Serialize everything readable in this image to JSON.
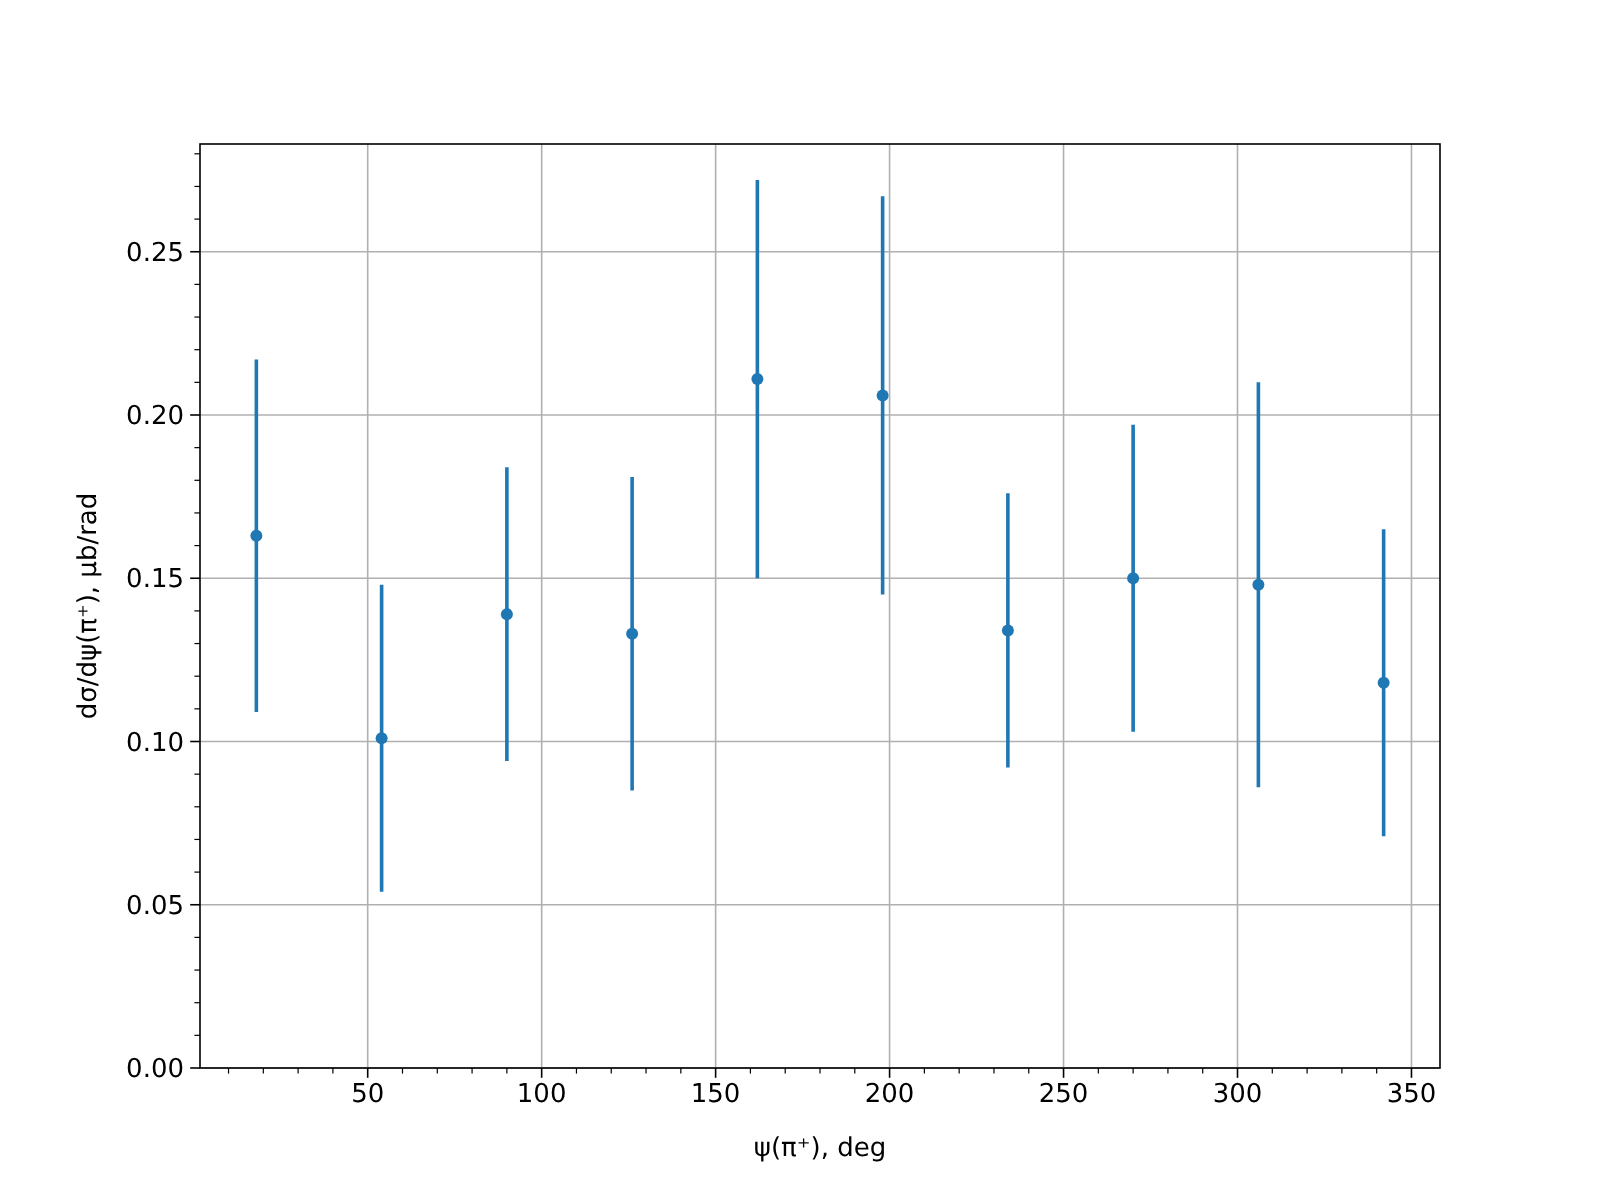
{
  "chart_data": {
    "type": "scatter",
    "xlabel": "ψ(π⁺), deg",
    "ylabel": "dσ/dψ(π⁺), μb/rad",
    "x": [
      18,
      54,
      90,
      126,
      162,
      198,
      234,
      270,
      306,
      342
    ],
    "series": [
      {
        "color": "#1f77b4",
        "values": [
          0.163,
          0.101,
          0.139,
          0.133,
          0.211,
          0.206,
          0.134,
          0.15,
          0.148,
          0.118
        ],
        "errors": [
          0.054,
          0.047,
          0.045,
          0.048,
          0.061,
          0.061,
          0.042,
          0.047,
          0.062,
          0.047
        ]
      }
    ],
    "marker": "circle",
    "grid": true,
    "xlim": [
      1.8,
      358.2
    ],
    "ylim": [
      0,
      0.283
    ],
    "xticks": [
      {
        "value": 10,
        "label": null
      },
      {
        "value": 20,
        "label": null
      },
      {
        "value": 30,
        "label": null
      },
      {
        "value": 40,
        "label": null
      },
      50,
      {
        "value": 60,
        "label": null
      },
      {
        "value": 70,
        "label": null
      },
      {
        "value": 80,
        "label": null
      },
      {
        "value": 90,
        "label": null
      },
      100,
      {
        "value": 110,
        "label": null
      },
      {
        "value": 120,
        "label": null
      },
      {
        "value": 130,
        "label": null
      },
      {
        "value": 140,
        "label": null
      },
      150,
      {
        "value": 160,
        "label": null
      },
      {
        "value": 170,
        "label": null
      },
      {
        "value": 180,
        "label": null
      },
      {
        "value": 190,
        "label": null
      },
      200,
      {
        "value": 210,
        "label": null
      },
      {
        "value": 220,
        "label": null
      },
      {
        "value": 230,
        "label": null
      },
      {
        "value": 240,
        "label": null
      },
      250,
      {
        "value": 260,
        "label": null
      },
      {
        "value": 270,
        "label": null
      },
      {
        "value": 280,
        "label": null
      },
      {
        "value": 290,
        "label": null
      },
      300,
      {
        "value": 310,
        "label": null
      },
      {
        "value": 320,
        "label": null
      },
      {
        "value": 330,
        "label": null
      },
      {
        "value": 340,
        "label": null
      },
      350
    ],
    "yticks": [
      {
        "value": 0,
        "label": "0.00"
      },
      {
        "value": 0.01,
        "label": null
      },
      {
        "value": 0.02,
        "label": null
      },
      {
        "value": 0.03,
        "label": null
      },
      {
        "value": 0.04,
        "label": null
      },
      {
        "value": 0.05,
        "label": "0.05"
      },
      {
        "value": 0.06,
        "label": null
      },
      {
        "value": 0.07,
        "label": null
      },
      {
        "value": 0.08,
        "label": null
      },
      {
        "value": 0.09,
        "label": null
      },
      {
        "value": 0.1,
        "label": "0.10"
      },
      {
        "value": 0.11,
        "label": null
      },
      {
        "value": 0.12,
        "label": null
      },
      {
        "value": 0.13,
        "label": null
      },
      {
        "value": 0.14,
        "label": null
      },
      {
        "value": 0.15,
        "label": "0.15"
      },
      {
        "value": 0.16,
        "label": null
      },
      {
        "value": 0.17,
        "label": null
      },
      {
        "value": 0.18,
        "label": null
      },
      {
        "value": 0.19,
        "label": null
      },
      {
        "value": 0.2,
        "label": "0.20"
      },
      {
        "value": 0.21,
        "label": null
      },
      {
        "value": 0.22,
        "label": null
      },
      {
        "value": 0.23,
        "label": null
      },
      {
        "value": 0.24,
        "label": null
      },
      {
        "value": 0.25,
        "label": "0.25"
      },
      {
        "value": 0.26,
        "label": null
      },
      {
        "value": 0.27,
        "label": null
      },
      {
        "value": 0.28,
        "label": null
      }
    ]
  }
}
